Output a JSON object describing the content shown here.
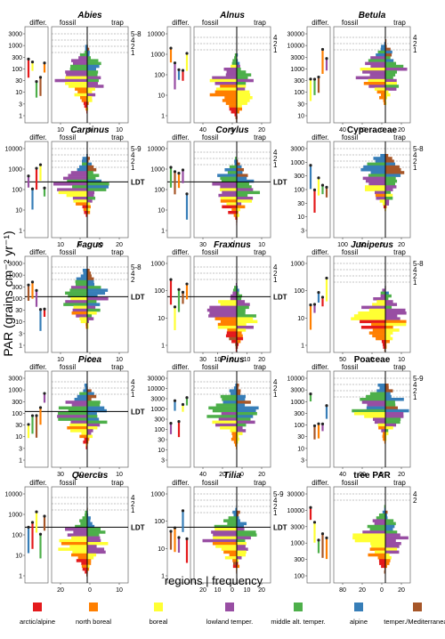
{
  "figure": {
    "ylabel": "PAR (grains cm⁻² yr⁻¹)",
    "regions_label": "regions | frequency",
    "header_labels": {
      "differ": "differ.",
      "fossil": "fossil",
      "trap": "trap"
    },
    "ldt_label": "LDT"
  },
  "legend": [
    {
      "label": "arctic/alpine",
      "color": "#e41a1c"
    },
    {
      "label": "north boreal",
      "color": "#ff7f00"
    },
    {
      "label": "boreal",
      "color": "#ffff33"
    },
    {
      "label": "lowland temper.",
      "color": "#984ea3"
    },
    {
      "label": "middle alt. temper.",
      "color": "#4daf4a"
    },
    {
      "label": "alpine",
      "color": "#377eb8"
    },
    {
      "label": "temper./Mediterranean",
      "color": "#a65628"
    }
  ],
  "chart_data": [
    {
      "type": "bar",
      "title": "Abies",
      "title_italic": true,
      "yticks": [
        "3000",
        "1000",
        "300",
        "100",
        "30",
        "10",
        "3",
        "1"
      ],
      "xticks": [
        "10",
        "0",
        "10"
      ],
      "zones": [
        "5-8",
        "4",
        "2",
        "1"
      ],
      "ldt": false
    },
    {
      "type": "bar",
      "title": "Alnus",
      "title_italic": true,
      "yticks": [
        "10000",
        "1000",
        "100",
        "10",
        "1"
      ],
      "xticks": [
        "40",
        "0",
        "20"
      ],
      "zones": [
        "4",
        "2",
        "1"
      ],
      "ldt": false
    },
    {
      "type": "bar",
      "title": "Betula",
      "title_italic": true,
      "yticks": [
        "30000",
        "10000",
        "3000",
        "1000",
        "300",
        "100",
        "30",
        "10"
      ],
      "xticks": [
        "40",
        "20",
        "0",
        "20"
      ],
      "zones": [
        "4",
        "2",
        "1"
      ],
      "ldt": false
    },
    {
      "type": "bar",
      "title": "Carpinus",
      "title_italic": true,
      "yticks": [
        "10000",
        "1000",
        "100",
        "10",
        "1"
      ],
      "xticks": [
        "10",
        "0",
        "10",
        "20"
      ],
      "zones": [
        "5-9",
        "4",
        "2",
        "1"
      ],
      "ldt": true
    },
    {
      "type": "bar",
      "title": "Corylus",
      "title_italic": true,
      "yticks": [
        "10000",
        "1000",
        "100",
        "10",
        "1"
      ],
      "xticks": [
        "30",
        "0",
        "10"
      ],
      "zones": [
        "4",
        "2",
        "1"
      ],
      "ldt": true
    },
    {
      "type": "bar",
      "title": "Cyperaceae",
      "title_italic": false,
      "yticks": [
        "3000",
        "1000",
        "300",
        "100",
        "30",
        "10",
        "3"
      ],
      "xticks": [
        "100",
        "50",
        "0",
        "20"
      ],
      "zones": [
        "5-8",
        "4",
        "2",
        "1"
      ],
      "ldt": false
    },
    {
      "type": "bar",
      "title": "Fagus",
      "title_italic": true,
      "yticks": [
        "3000",
        "1000",
        "300",
        "100",
        "30",
        "10",
        "3",
        "1"
      ],
      "xticks": [
        "10",
        "0",
        "10"
      ],
      "zones": [
        "5-8",
        "4",
        "2"
      ],
      "ldt": true
    },
    {
      "type": "bar",
      "title": "Fraxinus",
      "title_italic": true,
      "yticks": [
        "1000",
        "100",
        "10",
        "1"
      ],
      "xticks": [
        "30",
        "10",
        "0",
        "10",
        "20"
      ],
      "zones": [
        "4",
        "2",
        "1"
      ],
      "ldt": true
    },
    {
      "type": "bar",
      "title": "Juniperus",
      "title_italic": true,
      "yticks": [
        "1000",
        "100",
        "10",
        "1"
      ],
      "xticks": [
        "50",
        "0",
        "10"
      ],
      "zones": [
        "5-8",
        "4",
        "2",
        "1"
      ],
      "ldt": false
    },
    {
      "type": "bar",
      "title": "Picea",
      "title_italic": true,
      "yticks": [
        "3000",
        "1000",
        "300",
        "100",
        "30",
        "10",
        "3",
        "1"
      ],
      "xticks": [
        "30",
        "10",
        "0",
        "10"
      ],
      "zones": [
        "4",
        "2",
        "1"
      ],
      "ldt": true
    },
    {
      "type": "bar",
      "title": "Pinus",
      "title_italic": true,
      "yticks": [
        "30000",
        "10000",
        "3000",
        "1000",
        "300",
        "100",
        "30",
        "10",
        "3"
      ],
      "xticks": [
        "40",
        "20",
        "0",
        "20"
      ],
      "zones": [
        "4",
        "2",
        "1"
      ],
      "ldt": false
    },
    {
      "type": "bar",
      "title": "Poaceae",
      "title_italic": false,
      "yticks": [
        "10000",
        "3000",
        "1000",
        "300",
        "100",
        "30",
        "10",
        "3"
      ],
      "xticks": [
        "40",
        "20",
        "0",
        "20"
      ],
      "zones": [
        "5-9",
        "4",
        "2",
        "1"
      ],
      "ldt": false
    },
    {
      "type": "bar",
      "title": "Quercus",
      "title_italic": true,
      "yticks": [
        "10000",
        "1000",
        "100",
        "10",
        "1"
      ],
      "xticks": [
        "20",
        "0",
        "10"
      ],
      "zones": [
        "4",
        "2",
        "1"
      ],
      "ldt": true
    },
    {
      "type": "bar",
      "title": "Tilia",
      "title_italic": true,
      "yticks": [
        "1000",
        "100",
        "10",
        "1"
      ],
      "xticks": [
        "20",
        "10",
        "0",
        "10",
        "20"
      ],
      "zones": [
        "5-9",
        "4",
        "2",
        "1"
      ],
      "ldt": true
    },
    {
      "type": "bar",
      "title": "tree PAR",
      "title_italic": false,
      "yticks": [
        "30000",
        "10000",
        "3000",
        "1000",
        "300",
        "100"
      ],
      "xticks": [
        "80",
        "20",
        "0",
        "20"
      ],
      "zones": [
        "4",
        "2"
      ],
      "ldt": false
    }
  ]
}
